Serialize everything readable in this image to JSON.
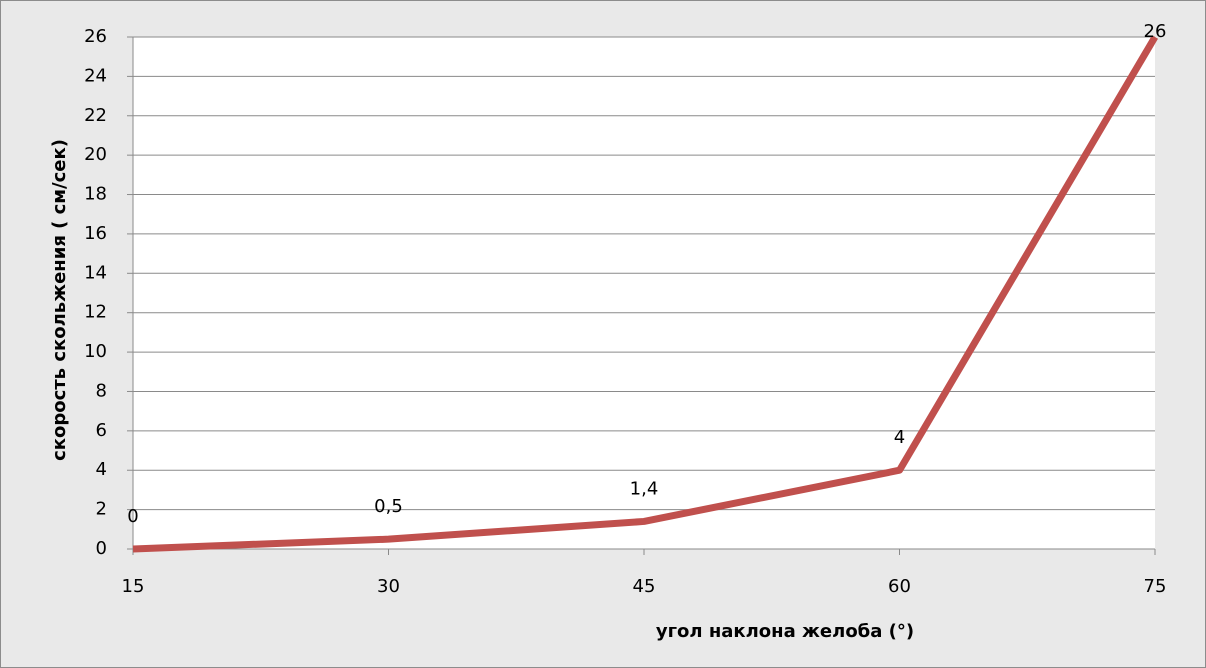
{
  "chart_data": {
    "type": "line",
    "xlabel": "угол наклона желоба (°)",
    "ylabel": "скорость скольжения ( см/сек)",
    "x": [
      15,
      30,
      45,
      60,
      75
    ],
    "values": [
      0,
      0.5,
      1.4,
      4,
      26
    ],
    "value_labels": [
      "0",
      "0,5",
      "1,4",
      "4",
      "26"
    ],
    "color": "#c0504d",
    "xlim": [
      15,
      75
    ],
    "xticks": [
      15,
      30,
      45,
      60,
      75
    ],
    "ylim": [
      0,
      26
    ],
    "yticks": [
      0,
      2,
      4,
      6,
      8,
      10,
      12,
      14,
      16,
      18,
      20,
      22,
      24,
      26
    ],
    "grid": true
  }
}
